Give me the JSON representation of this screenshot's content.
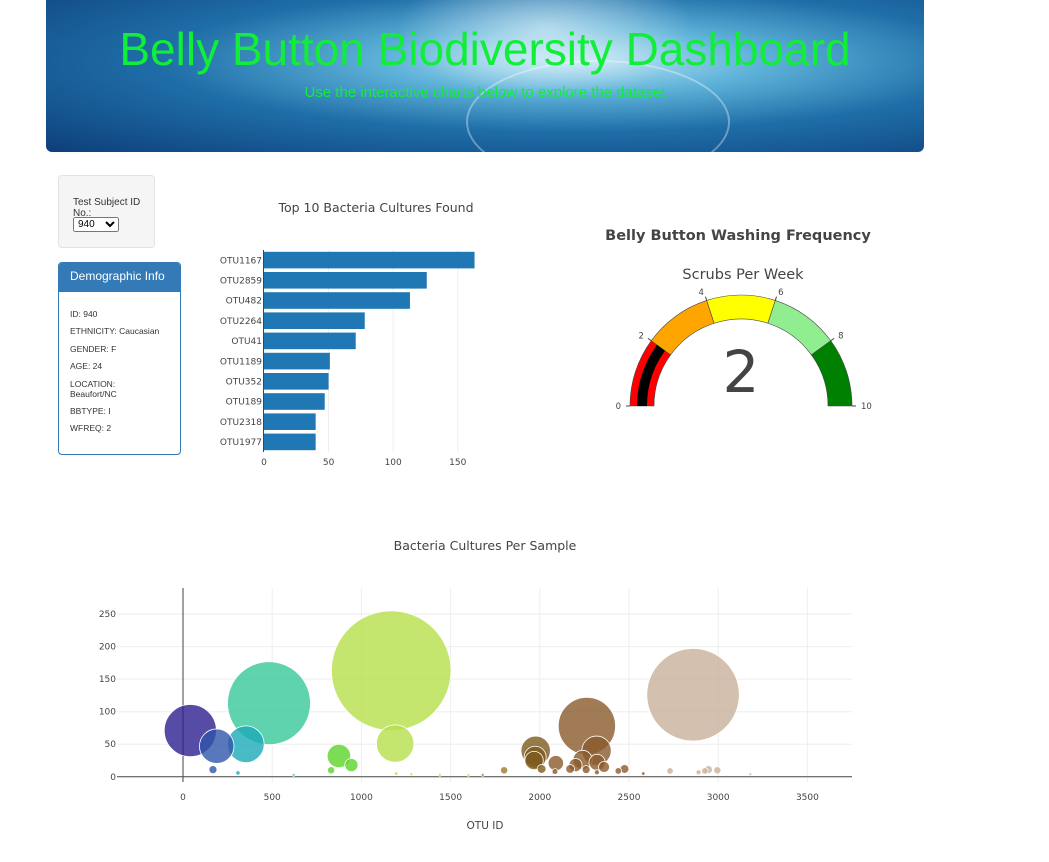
{
  "header": {
    "title": "Belly Button Biodiversity Dashboard",
    "subtitle": "Use the interactive charts below to explore the dataset"
  },
  "selector": {
    "label": "Test Subject ID No.:",
    "selected": "940"
  },
  "demographic": {
    "title": "Demographic Info",
    "lines": [
      "ID: 940",
      "ETHNICITY: Caucasian",
      "GENDER: F",
      "AGE: 24",
      "LOCATION: Beaufort/NC",
      "BBTYPE: I",
      "WFREQ: 2"
    ]
  },
  "chart_data": [
    {
      "type": "bar",
      "orientation": "horizontal",
      "title": "Top 10 Bacteria Cultures Found",
      "categories": [
        "OTU1167",
        "OTU2859",
        "OTU482",
        "OTU2264",
        "OTU41",
        "OTU1189",
        "OTU352",
        "OTU189",
        "OTU2318",
        "OTU1977"
      ],
      "values": [
        163,
        126,
        113,
        78,
        71,
        51,
        50,
        47,
        40,
        40
      ],
      "color": "#1f77b4",
      "xticks": [
        0,
        50,
        100,
        150
      ],
      "xlim": [
        0,
        168
      ]
    },
    {
      "type": "gauge",
      "title": "Belly Button Washing Frequency",
      "subtitle": "Scrubs Per Week",
      "value": 2,
      "range": [
        0,
        10
      ],
      "tick_labels": [
        "0",
        "2",
        "4",
        "6",
        "8",
        "10"
      ],
      "steps": [
        {
          "range": [
            0,
            2
          ],
          "color": "#ff0000"
        },
        {
          "range": [
            2,
            4
          ],
          "color": "#ffa500"
        },
        {
          "range": [
            4,
            6
          ],
          "color": "#ffff00"
        },
        {
          "range": [
            6,
            8
          ],
          "color": "#90ee90"
        },
        {
          "range": [
            8,
            10
          ],
          "color": "#008000"
        }
      ],
      "bar_color": "#000000"
    },
    {
      "type": "scatter",
      "style": "bubble",
      "title": "Bacteria Cultures Per Sample",
      "xlabel": "OTU ID",
      "ylabel": "",
      "xlim": [
        -370,
        3750
      ],
      "ylim": [
        -8,
        290
      ],
      "xticks": [
        0,
        500,
        1000,
        1500,
        2000,
        2500,
        3000,
        3500
      ],
      "yticks": [
        0,
        50,
        100,
        150,
        200,
        250
      ],
      "points": [
        {
          "x": 1167,
          "y": 163,
          "color": "#b5e04a"
        },
        {
          "x": 2859,
          "y": 126,
          "color": "#c8b09a"
        },
        {
          "x": 482,
          "y": 113,
          "color": "#36c89a"
        },
        {
          "x": 2264,
          "y": 78,
          "color": "#8a5a2b"
        },
        {
          "x": 41,
          "y": 71,
          "color": "#2c1f8f"
        },
        {
          "x": 1189,
          "y": 51,
          "color": "#b5e04a"
        },
        {
          "x": 352,
          "y": 50,
          "color": "#1aaab8"
        },
        {
          "x": 189,
          "y": 47,
          "color": "#2f55aa"
        },
        {
          "x": 2318,
          "y": 40,
          "color": "#8a5a2b"
        },
        {
          "x": 1977,
          "y": 40,
          "color": "#7d5a1e"
        },
        {
          "x": 874,
          "y": 32,
          "color": "#5bd42a"
        },
        {
          "x": 1974,
          "y": 30,
          "color": "#7d5a1e"
        },
        {
          "x": 2240,
          "y": 26,
          "color": "#8a5a2b"
        },
        {
          "x": 2090,
          "y": 21,
          "color": "#8a5a2b"
        },
        {
          "x": 2321,
          "y": 22,
          "color": "#8a5a2b"
        },
        {
          "x": 1968,
          "y": 25,
          "color": "#7d5a1e"
        },
        {
          "x": 2200,
          "y": 18,
          "color": "#8a5a2b"
        },
        {
          "x": 944,
          "y": 18,
          "color": "#5bd42a"
        },
        {
          "x": 2360,
          "y": 15,
          "color": "#8a5a2b"
        },
        {
          "x": 2010,
          "y": 12,
          "color": "#7d5a1e"
        },
        {
          "x": 1800,
          "y": 10,
          "color": "#9a7a2a"
        },
        {
          "x": 2170,
          "y": 12,
          "color": "#8a5a2b"
        },
        {
          "x": 2475,
          "y": 12,
          "color": "#8a5a2b"
        },
        {
          "x": 2260,
          "y": 11,
          "color": "#8a5a2b"
        },
        {
          "x": 2440,
          "y": 9,
          "color": "#8a5a2b"
        },
        {
          "x": 2945,
          "y": 11,
          "color": "#c8b09a"
        },
        {
          "x": 2995,
          "y": 10,
          "color": "#c8b09a"
        },
        {
          "x": 2925,
          "y": 9,
          "color": "#c8b09a"
        },
        {
          "x": 2730,
          "y": 9,
          "color": "#c8b09a"
        },
        {
          "x": 2890,
          "y": 7,
          "color": "#c8b09a"
        },
        {
          "x": 168,
          "y": 11,
          "color": "#2f55aa"
        },
        {
          "x": 830,
          "y": 10,
          "color": "#5bd42a"
        },
        {
          "x": 2320,
          "y": 7,
          "color": "#8a5a2b"
        },
        {
          "x": 2085,
          "y": 8,
          "color": "#8a5a2b"
        },
        {
          "x": 308,
          "y": 6,
          "color": "#1aaab8"
        },
        {
          "x": 1195,
          "y": 5,
          "color": "#b5e04a"
        },
        {
          "x": 1280,
          "y": 4,
          "color": "#b5e04a"
        },
        {
          "x": 2580,
          "y": 5,
          "color": "#8a5a2b"
        },
        {
          "x": 1680,
          "y": 3,
          "color": "#9a7a2a"
        },
        {
          "x": 3180,
          "y": 4,
          "color": "#c8b09a"
        },
        {
          "x": 1440,
          "y": 3,
          "color": "#b5e04a"
        },
        {
          "x": 620,
          "y": 3,
          "color": "#36c89a"
        },
        {
          "x": 1600,
          "y": 3,
          "color": "#b5e04a"
        }
      ]
    }
  ]
}
